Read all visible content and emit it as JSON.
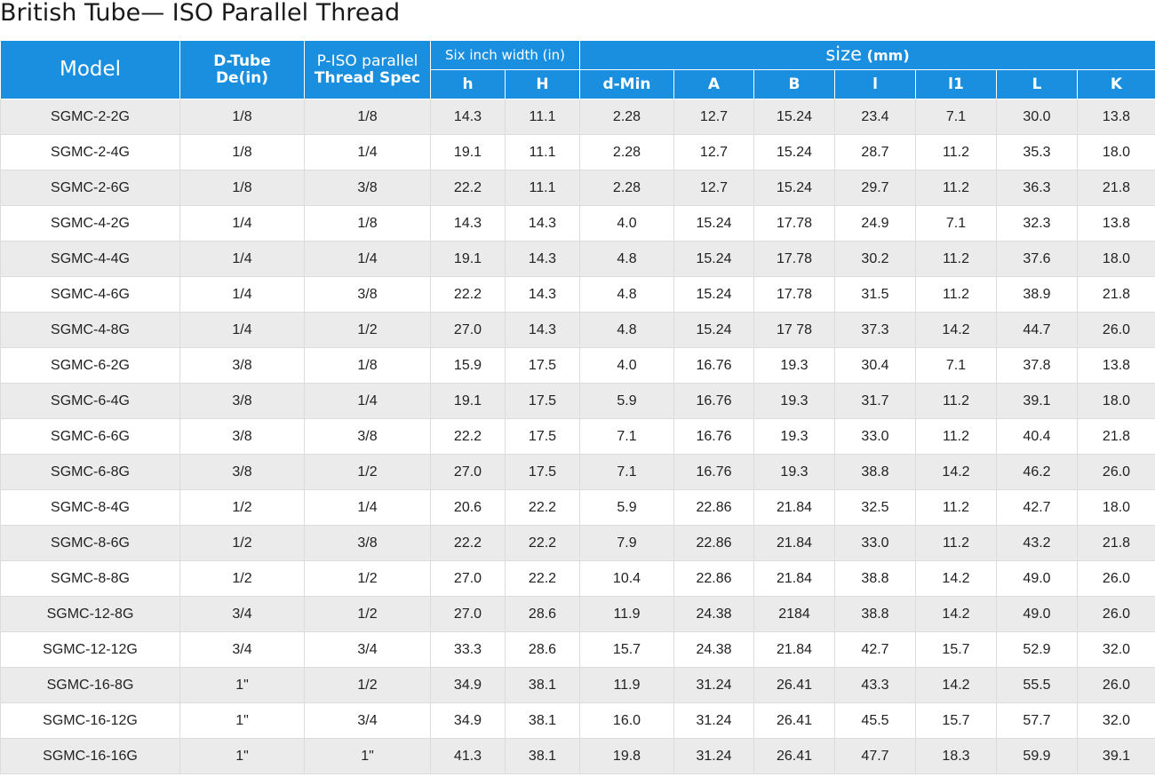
{
  "title": "British Tube— ISO Parallel Thread",
  "headers": {
    "model": "Model",
    "dtube_line1": "D-Tube",
    "dtube_line2": "De(in)",
    "piso_line1": "P-ISO parallel",
    "piso_line2": "Thread Spec",
    "six_inch_width": "Six inch width (in)",
    "size_label": "size",
    "size_unit": "(mm)",
    "h_small": "h",
    "H_large": "H",
    "d_min": "d-Min",
    "A": "A",
    "B": "B",
    "l": "l",
    "l1": "l1",
    "L": "L",
    "K": "K"
  },
  "rows": [
    [
      "SGMC-2-2G",
      "1/8",
      "1/8",
      "14.3",
      "11.1",
      "2.28",
      "12.7",
      "15.24",
      "23.4",
      "7.1",
      "30.0",
      "13.8"
    ],
    [
      "SGMC-2-4G",
      "1/8",
      "1/4",
      "19.1",
      "11.1",
      "2.28",
      "12.7",
      "15.24",
      "28.7",
      "11.2",
      "35.3",
      "18.0"
    ],
    [
      "SGMC-2-6G",
      "1/8",
      "3/8",
      "22.2",
      "11.1",
      "2.28",
      "12.7",
      "15.24",
      "29.7",
      "11.2",
      "36.3",
      "21.8"
    ],
    [
      "SGMC-4-2G",
      "1/4",
      "1/8",
      "14.3",
      "14.3",
      "4.0",
      "15.24",
      "17.78",
      "24.9",
      "7.1",
      "32.3",
      "13.8"
    ],
    [
      "SGMC-4-4G",
      "1/4",
      "1/4",
      "19.1",
      "14.3",
      "4.8",
      "15.24",
      "17.78",
      "30.2",
      "11.2",
      "37.6",
      "18.0"
    ],
    [
      "SGMC-4-6G",
      "1/4",
      "3/8",
      "22.2",
      "14.3",
      "4.8",
      "15.24",
      "17.78",
      "31.5",
      "11.2",
      "38.9",
      "21.8"
    ],
    [
      "SGMC-4-8G",
      "1/4",
      "1/2",
      "27.0",
      "14.3",
      "4.8",
      "15.24",
      "17 78",
      "37.3",
      "14.2",
      "44.7",
      "26.0"
    ],
    [
      "SGMC-6-2G",
      "3/8",
      "1/8",
      "15.9",
      "17.5",
      "4.0",
      "16.76",
      "19.3",
      "30.4",
      "7.1",
      "37.8",
      "13.8"
    ],
    [
      "SGMC-6-4G",
      "3/8",
      "1/4",
      "19.1",
      "17.5",
      "5.9",
      "16.76",
      "19.3",
      "31.7",
      "11.2",
      "39.1",
      "18.0"
    ],
    [
      "SGMC-6-6G",
      "3/8",
      "3/8",
      "22.2",
      "17.5",
      "7.1",
      "16.76",
      "19.3",
      "33.0",
      "11.2",
      "40.4",
      "21.8"
    ],
    [
      "SGMC-6-8G",
      "3/8",
      "1/2",
      "27.0",
      "17.5",
      "7.1",
      "16.76",
      "19.3",
      "38.8",
      "14.2",
      "46.2",
      "26.0"
    ],
    [
      "SGMC-8-4G",
      "1/2",
      "1/4",
      "20.6",
      "22.2",
      "5.9",
      "22.86",
      "21.84",
      "32.5",
      "11.2",
      "42.7",
      "18.0"
    ],
    [
      "SGMC-8-6G",
      "1/2",
      "3/8",
      "22.2",
      "22.2",
      "7.9",
      "22.86",
      "21.84",
      "33.0",
      "11.2",
      "43.2",
      "21.8"
    ],
    [
      "SGMC-8-8G",
      "1/2",
      "1/2",
      "27.0",
      "22.2",
      "10.4",
      "22.86",
      "21.84",
      "38.8",
      "14.2",
      "49.0",
      "26.0"
    ],
    [
      "SGMC-12-8G",
      "3/4",
      "1/2",
      "27.0",
      "28.6",
      "11.9",
      "24.38",
      "2184",
      "38.8",
      "14.2",
      "49.0",
      "26.0"
    ],
    [
      "SGMC-12-12G",
      "3/4",
      "3/4",
      "33.3",
      "28.6",
      "15.7",
      "24.38",
      "21.84",
      "42.7",
      "15.7",
      "52.9",
      "32.0"
    ],
    [
      "SGMC-16-8G",
      "1\"",
      "1/2",
      "34.9",
      "38.1",
      "11.9",
      "31.24",
      "26.41",
      "43.3",
      "14.2",
      "55.5",
      "26.0"
    ],
    [
      "SGMC-16-12G",
      "1\"",
      "3/4",
      "34.9",
      "38.1",
      "16.0",
      "31.24",
      "26.41",
      "45.5",
      "15.7",
      "57.7",
      "32.0"
    ],
    [
      "SGMC-16-16G",
      "1\"",
      "1\"",
      "41.3",
      "38.1",
      "19.8",
      "31.24",
      "26.41",
      "47.7",
      "18.3",
      "59.9",
      "39.1"
    ]
  ]
}
